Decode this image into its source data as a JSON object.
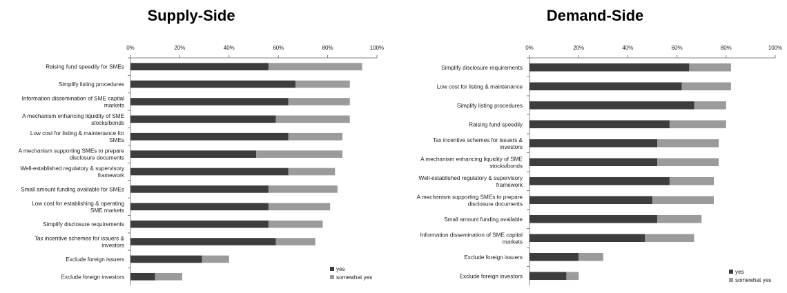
{
  "colors": {
    "yes": "#3d3d3d",
    "somewhat_yes": "#9b9b9b",
    "axis": "#808080",
    "text": "#1a1a1a"
  },
  "chart_data": [
    {
      "type": "bar",
      "orientation": "horizontal",
      "stacked": true,
      "title": "Supply-Side",
      "xlim": [
        0,
        100
      ],
      "x_ticks": [
        "0%",
        "20%",
        "40%",
        "60%",
        "80%",
        "100%"
      ],
      "grid": false,
      "legend_position": "bottom-right",
      "categories": [
        [
          "Raising fund speedily for SMEs"
        ],
        [
          "Simplify listing procedures"
        ],
        [
          "Information dissemination of SME capital",
          "markets"
        ],
        [
          "A mechanism enhancing liquidity of SME",
          "stocks/bonds"
        ],
        [
          "Low cost for listing & maintenance for",
          "SMEs"
        ],
        [
          "A mechanism supporting SMEs to prepare",
          "disclosure documents"
        ],
        [
          "Well-established regulatory & supervisory",
          "framework"
        ],
        [
          "Small amount funding available for SMEs"
        ],
        [
          "Low cost for establishing & operating",
          "SME markets"
        ],
        [
          "Simplify disclosure requirements"
        ],
        [
          "Tax incentive schemes for issuers &",
          "investors"
        ],
        [
          "Exclude foreign issuers"
        ],
        [
          "Exclude foreign investors"
        ]
      ],
      "series": [
        {
          "name": "yes",
          "values": [
            56,
            67,
            64,
            59,
            64,
            51,
            64,
            56,
            56,
            56,
            59,
            29,
            10
          ]
        },
        {
          "name": "somewhat yes",
          "values": [
            38,
            22,
            25,
            30,
            22,
            35,
            19,
            28,
            25,
            22,
            16,
            11,
            11
          ]
        }
      ]
    },
    {
      "type": "bar",
      "orientation": "horizontal",
      "stacked": true,
      "title": "Demand-Side",
      "xlim": [
        0,
        100
      ],
      "x_ticks": [
        "0%",
        "20%",
        "40%",
        "60%",
        "80%",
        "100%"
      ],
      "grid": false,
      "legend_position": "bottom-right",
      "categories": [
        [
          "Simplify disclosure requirements"
        ],
        [
          "Low cost for listing & maintenance"
        ],
        [
          "Simplify listing procedures"
        ],
        [
          "Raising fund speedily"
        ],
        [
          "Tax incentive schemes for issuers &",
          "investors"
        ],
        [
          "A mechanism enhancing liquidity of SME",
          "stocks/bonds"
        ],
        [
          "Well-established regulatory & supervisory",
          "framework"
        ],
        [
          "A mechanism supporting SMEs to prepare",
          "disclosure documents"
        ],
        [
          "Small amount funding available"
        ],
        [
          "Information dissemination of SME capital",
          "markets"
        ],
        [
          "Exclude foreign issuers"
        ],
        [
          "Exclude foreign investors"
        ]
      ],
      "series": [
        {
          "name": "yes",
          "values": [
            65,
            62,
            67,
            57,
            52,
            52,
            57,
            50,
            52,
            47,
            20,
            15
          ]
        },
        {
          "name": "somewhat yes",
          "values": [
            17,
            20,
            13,
            23,
            25,
            25,
            18,
            25,
            18,
            20,
            10,
            5
          ]
        }
      ]
    }
  ]
}
